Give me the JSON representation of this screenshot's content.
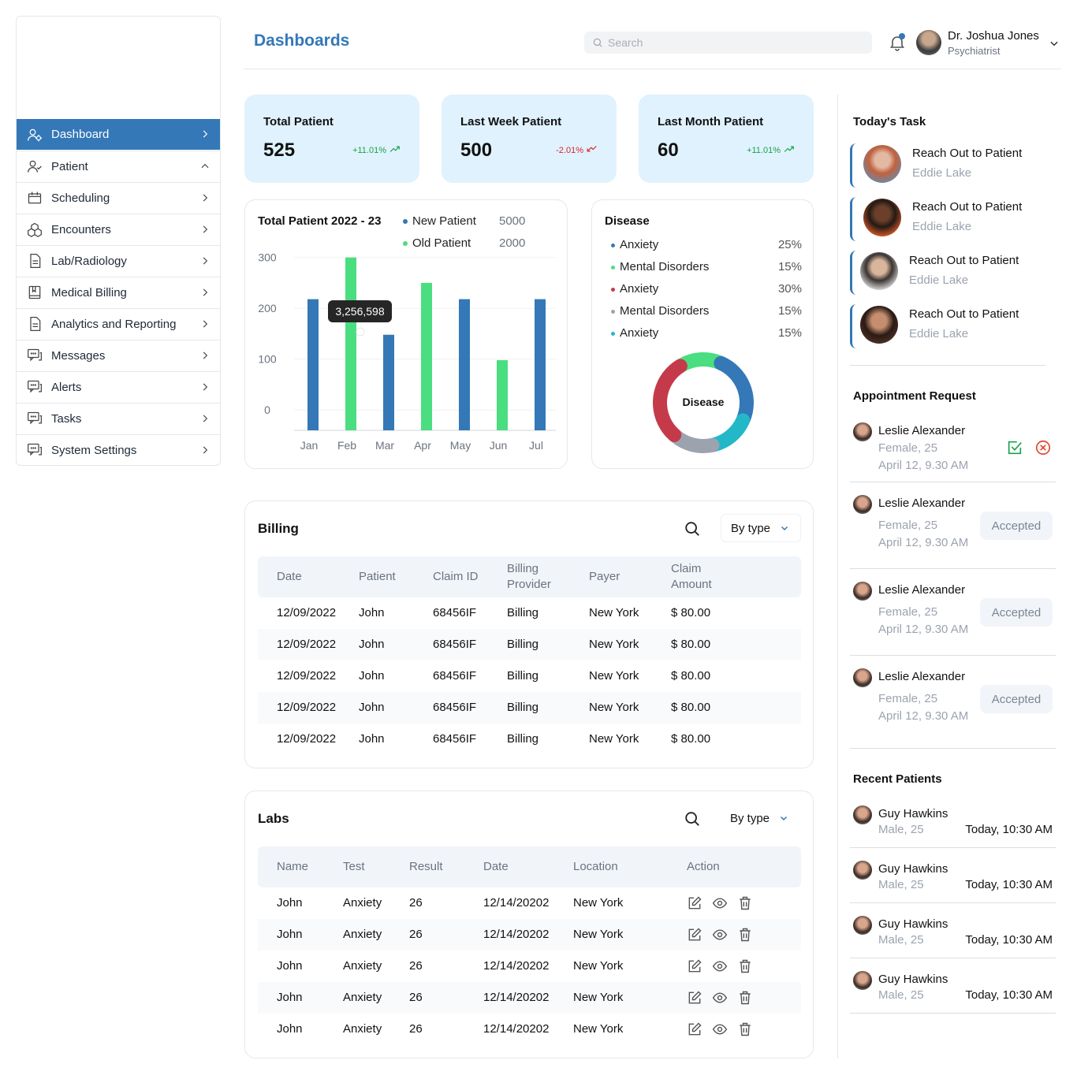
{
  "header": {
    "title": "Dashboards",
    "search_placeholder": "Search",
    "user_name": "Dr. Joshua Jones",
    "user_role": "Psychiatrist"
  },
  "sidebar": {
    "items": [
      {
        "label": "Dashboard",
        "icon": "users-gear-icon",
        "active": true
      },
      {
        "label": "Patient",
        "icon": "user-icon",
        "expanded": true
      },
      {
        "label": "Scheduling",
        "icon": "calendar-icon"
      },
      {
        "label": "Encounters",
        "icon": "boxes-icon"
      },
      {
        "label": "Lab/Radiology",
        "icon": "document-icon"
      },
      {
        "label": "Medical Billing",
        "icon": "book-icon"
      },
      {
        "label": "Analytics and Reporting",
        "icon": "document-icon"
      },
      {
        "label": "Messages",
        "icon": "chat-icon"
      },
      {
        "label": "Alerts",
        "icon": "chat-icon"
      },
      {
        "label": "Tasks",
        "icon": "chat-icon"
      },
      {
        "label": "System Settings",
        "icon": "chat-icon"
      }
    ]
  },
  "stats": [
    {
      "title": "Total Patient",
      "value": "525",
      "change": "+11.01%",
      "trend": "up",
      "color": "#16a34a"
    },
    {
      "title": "Last Week Patient",
      "value": "500",
      "change": "-2.01%",
      "trend": "down",
      "color": "#dc2626"
    },
    {
      "title": "Last Month Patient",
      "value": "60",
      "change": "+11.01%",
      "trend": "up",
      "color": "#16a34a"
    }
  ],
  "chart_data": {
    "type": "bar",
    "title": "Total Patient  2022 - 23",
    "categories": [
      "Jan",
      "Feb",
      "Mar",
      "Apr",
      "May",
      "Jun",
      "Jul"
    ],
    "values": [
      218,
      300,
      148,
      250,
      218,
      98,
      218
    ],
    "colors": [
      "#3478b7",
      "#4ade80",
      "#3478b7",
      "#4ade80",
      "#3478b7",
      "#4ade80",
      "#3478b7"
    ],
    "yticks": [
      "300",
      "200",
      "100",
      "0"
    ],
    "ylim": [
      -40,
      300
    ],
    "tooltip": "3,256,598",
    "legend": [
      {
        "name": "New Patient",
        "value": "5000",
        "color": "#3478b7"
      },
      {
        "name": "Old Patient",
        "value": "2000",
        "color": "#4ade80"
      }
    ],
    "grid": true
  },
  "disease": {
    "title": "Disease",
    "center_label": "Disease",
    "items": [
      {
        "name": "Anxiety",
        "pct": "25%",
        "value": 25,
        "color": "#3478b7"
      },
      {
        "name": "Mental Disorders",
        "pct": "15%",
        "value": 15,
        "color": "#4ade80"
      },
      {
        "name": "Anxiety",
        "pct": "30%",
        "value": 30,
        "color": "#c53a4b"
      },
      {
        "name": "Mental Disorders",
        "pct": "15%",
        "value": 15,
        "color": "#9ca3af"
      },
      {
        "name": "Anxiety",
        "pct": "15%",
        "value": 15,
        "color": "#22b8c8"
      }
    ]
  },
  "billing": {
    "title": "Billing",
    "filter": "By type",
    "columns": [
      "Date",
      "Patient",
      "Claim ID",
      "Billing Provider",
      "Payer",
      "Claim Amount"
    ],
    "rows": [
      [
        "12/09/2022",
        "John",
        "68456IF",
        "Billing",
        "New York",
        "$ 80.00"
      ],
      [
        "12/09/2022",
        "John",
        "68456IF",
        "Billing",
        "New York",
        "$ 80.00"
      ],
      [
        "12/09/2022",
        "John",
        "68456IF",
        "Billing",
        "New York",
        "$ 80.00"
      ],
      [
        "12/09/2022",
        "John",
        "68456IF",
        "Billing",
        "New York",
        "$ 80.00"
      ],
      [
        "12/09/2022",
        "John",
        "68456IF",
        "Billing",
        "New York",
        "$ 80.00"
      ]
    ]
  },
  "labs": {
    "title": "Labs",
    "filter": "By type",
    "columns": [
      "Name",
      "Test",
      "Result",
      "Date",
      "Location",
      "Action"
    ],
    "rows": [
      [
        "John",
        "Anxiety",
        "26",
        "12/14/20202",
        "New York"
      ],
      [
        "John",
        "Anxiety",
        "26",
        "12/14/20202",
        "New York"
      ],
      [
        "John",
        "Anxiety",
        "26",
        "12/14/20202",
        "New York"
      ],
      [
        "John",
        "Anxiety",
        "26",
        "12/14/20202",
        "New York"
      ],
      [
        "John",
        "Anxiety",
        "26",
        "12/14/20202",
        "New York"
      ]
    ]
  },
  "tasks": {
    "title": "Today's Task",
    "items": [
      {
        "title": "Reach Out to Patient",
        "name": "Eddie Lake"
      },
      {
        "title": "Reach Out to Patient",
        "name": "Eddie Lake"
      },
      {
        "title": "Reach Out to Patient",
        "name": "Eddie Lake"
      },
      {
        "title": "Reach Out to Patient",
        "name": "Eddie Lake"
      }
    ]
  },
  "appointments": {
    "title": "Appointment Request",
    "items": [
      {
        "name": "Leslie Alexander",
        "info": "Female, 25",
        "date": "April 12, 9.30 AM",
        "status": ""
      },
      {
        "name": "Leslie Alexander",
        "info": "Female, 25",
        "date": "April 12, 9.30 AM",
        "status": "Accepted"
      },
      {
        "name": "Leslie Alexander",
        "info": "Female, 25",
        "date": "April 12, 9.30 AM",
        "status": "Accepted"
      },
      {
        "name": "Leslie Alexander",
        "info": "Female, 25",
        "date": "April 12, 9.30 AM",
        "status": "Accepted"
      }
    ]
  },
  "recent": {
    "title": "Recent Patients",
    "items": [
      {
        "name": "Guy Hawkins",
        "info": "Male, 25",
        "time": "Today, 10:30 AM"
      },
      {
        "name": "Guy Hawkins",
        "info": "Male, 25",
        "time": "Today, 10:30 AM"
      },
      {
        "name": "Guy Hawkins",
        "info": "Male, 25",
        "time": "Today, 10:30 AM"
      },
      {
        "name": "Guy Hawkins",
        "info": "Male, 25",
        "time": "Today, 10:30 AM"
      }
    ]
  }
}
